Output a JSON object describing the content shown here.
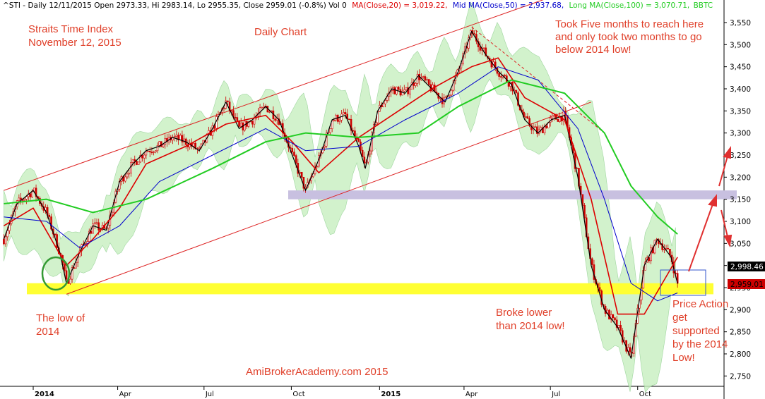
{
  "header": {
    "symbol_text": "^STI - Daily 12/11/2015 Open 2973.33, Hi 2983.14, Lo 2955.35, Close 2959.01 (-0.8%) Vol 0",
    "ma20_text": "MA(Close,20) = 3,019.22,",
    "ma50_text": "Mid MA(Close,50) = 2,937.68,",
    "ma100_text": "Long MA(Close,100) = 3,070.71,",
    "bbtc_text": "BBTC"
  },
  "annotations": {
    "title_line1": "Straits Time Index",
    "title_line2": "November 12, 2015",
    "daily_chart": "Daily Chart",
    "took_line1": "Took Five months to reach here",
    "took_line2": "and only took two months to go",
    "took_line3": "below 2014 low!",
    "low_line1": "The low of",
    "low_line2": "2014",
    "broke_line1": "Broke lower",
    "broke_line2": "than 2014 low!",
    "pa_line1": "Price Action",
    "pa_line2": "get",
    "pa_line3": "supported",
    "pa_line4": "by the 2014",
    "pa_line5": "Low!",
    "watermark": "AmiBrokerAcademy.com 2015"
  },
  "price_labels": {
    "ma_value": "2,998.46",
    "close_value": "2,959.01"
  },
  "colors": {
    "candle": "#cc0000",
    "ma20": "#dd0000",
    "ma50": "#0000cc",
    "ma100": "#22cc22",
    "band_fill": "#c8f0c0",
    "support": "#ffff33",
    "resistance": "#c8c0e0",
    "annotation": "#e0402a",
    "channel": "#dd2222"
  },
  "chart_data": {
    "type": "line",
    "title": "Daily Chart",
    "ylim": [
      2720,
      3580
    ],
    "y_ticks": [
      2750,
      2800,
      2850,
      2900,
      2950,
      3000,
      3050,
      3100,
      3150,
      3200,
      3250,
      3300,
      3350,
      3400,
      3450,
      3500,
      3550
    ],
    "y_tick_labels": [
      "2,750",
      "2,800",
      "2,850",
      "2,900",
      "2,950",
      "3,000",
      "3,050",
      "3,100",
      "3,150",
      "3,200",
      "3,250",
      "3,300",
      "3,350",
      "3,400",
      "3,450",
      "3,500",
      "3,550"
    ],
    "x_tick_labels": [
      {
        "label": "2014",
        "date": "2014-01-02",
        "bold": true
      },
      {
        "label": "Apr",
        "date": "2014-04-01",
        "bold": false
      },
      {
        "label": "Jul",
        "date": "2014-07-01",
        "bold": false
      },
      {
        "label": "Oct",
        "date": "2014-10-01",
        "bold": false
      },
      {
        "label": "2015",
        "date": "2015-01-02",
        "bold": true
      },
      {
        "label": "Apr",
        "date": "2015-04-01",
        "bold": false
      },
      {
        "label": "Jul",
        "date": "2015-07-01",
        "bold": false
      },
      {
        "label": "Oct",
        "date": "2015-10-01",
        "bold": false
      }
    ],
    "series": [
      {
        "name": "^STI Close",
        "color": "#cc0000",
        "points": [
          [
            "2013-12-02",
            3060
          ],
          [
            "2013-12-16",
            3140
          ],
          [
            "2014-01-02",
            3170
          ],
          [
            "2014-01-16",
            3120
          ],
          [
            "2014-01-30",
            3030
          ],
          [
            "2014-02-06",
            2960
          ],
          [
            "2014-02-20",
            3030
          ],
          [
            "2014-03-06",
            3090
          ],
          [
            "2014-03-20",
            3080
          ],
          [
            "2014-04-03",
            3190
          ],
          [
            "2014-04-17",
            3230
          ],
          [
            "2014-05-01",
            3260
          ],
          [
            "2014-05-15",
            3270
          ],
          [
            "2014-05-29",
            3290
          ],
          [
            "2014-06-12",
            3280
          ],
          [
            "2014-06-26",
            3260
          ],
          [
            "2014-07-10",
            3310
          ],
          [
            "2014-07-24",
            3370
          ],
          [
            "2014-08-07",
            3310
          ],
          [
            "2014-08-21",
            3330
          ],
          [
            "2014-09-04",
            3360
          ],
          [
            "2014-09-18",
            3330
          ],
          [
            "2014-10-02",
            3250
          ],
          [
            "2014-10-16",
            3170
          ],
          [
            "2014-10-30",
            3240
          ],
          [
            "2014-11-13",
            3330
          ],
          [
            "2014-11-27",
            3340
          ],
          [
            "2014-12-11",
            3270
          ],
          [
            "2014-12-18",
            3220
          ],
          [
            "2014-12-31",
            3350
          ],
          [
            "2015-01-15",
            3400
          ],
          [
            "2015-01-29",
            3390
          ],
          [
            "2015-02-12",
            3430
          ],
          [
            "2015-02-26",
            3400
          ],
          [
            "2015-03-12",
            3370
          ],
          [
            "2015-03-26",
            3440
          ],
          [
            "2015-04-09",
            3530
          ],
          [
            "2015-04-23",
            3480
          ],
          [
            "2015-05-07",
            3440
          ],
          [
            "2015-05-21",
            3410
          ],
          [
            "2015-06-04",
            3330
          ],
          [
            "2015-06-18",
            3300
          ],
          [
            "2015-07-02",
            3330
          ],
          [
            "2015-07-16",
            3340
          ],
          [
            "2015-07-30",
            3200
          ],
          [
            "2015-08-13",
            3000
          ],
          [
            "2015-08-27",
            2900
          ],
          [
            "2015-09-10",
            2860
          ],
          [
            "2015-09-24",
            2790
          ],
          [
            "2015-10-08",
            3000
          ],
          [
            "2015-10-22",
            3060
          ],
          [
            "2015-11-05",
            3020
          ],
          [
            "2015-11-12",
            2959
          ]
        ]
      },
      {
        "name": "MA(Close,20)",
        "color": "#dd0000",
        "points": [
          [
            "2013-12-02",
            3090
          ],
          [
            "2014-01-02",
            3130
          ],
          [
            "2014-02-06",
            3000
          ],
          [
            "2014-03-06",
            3060
          ],
          [
            "2014-04-03",
            3130
          ],
          [
            "2014-05-01",
            3230
          ],
          [
            "2014-06-12",
            3270
          ],
          [
            "2014-07-24",
            3320
          ],
          [
            "2014-09-04",
            3340
          ],
          [
            "2014-10-02",
            3280
          ],
          [
            "2014-10-30",
            3210
          ],
          [
            "2014-12-11",
            3290
          ],
          [
            "2015-01-15",
            3340
          ],
          [
            "2015-02-26",
            3400
          ],
          [
            "2015-04-09",
            3450
          ],
          [
            "2015-05-07",
            3470
          ],
          [
            "2015-06-04",
            3380
          ],
          [
            "2015-07-16",
            3330
          ],
          [
            "2015-08-13",
            3150
          ],
          [
            "2015-09-10",
            2890
          ],
          [
            "2015-10-08",
            2890
          ],
          [
            "2015-11-12",
            3019
          ]
        ]
      },
      {
        "name": "Mid MA(Close,50)",
        "color": "#0000cc",
        "points": [
          [
            "2013-12-02",
            3110
          ],
          [
            "2014-01-16",
            3100
          ],
          [
            "2014-02-20",
            3040
          ],
          [
            "2014-04-03",
            3090
          ],
          [
            "2014-05-15",
            3190
          ],
          [
            "2014-07-10",
            3250
          ],
          [
            "2014-09-04",
            3310
          ],
          [
            "2014-10-16",
            3260
          ],
          [
            "2014-12-11",
            3270
          ],
          [
            "2015-01-29",
            3330
          ],
          [
            "2015-03-26",
            3390
          ],
          [
            "2015-05-07",
            3450
          ],
          [
            "2015-06-18",
            3420
          ],
          [
            "2015-07-30",
            3310
          ],
          [
            "2015-08-27",
            3150
          ],
          [
            "2015-09-24",
            2960
          ],
          [
            "2015-10-22",
            2920
          ],
          [
            "2015-11-12",
            2938
          ]
        ]
      },
      {
        "name": "Long MA(Close,100)",
        "color": "#22cc22",
        "points": [
          [
            "2013-12-02",
            3140
          ],
          [
            "2014-01-16",
            3150
          ],
          [
            "2014-03-06",
            3120
          ],
          [
            "2014-05-01",
            3150
          ],
          [
            "2014-07-10",
            3220
          ],
          [
            "2014-09-04",
            3280
          ],
          [
            "2014-10-16",
            3300
          ],
          [
            "2014-12-11",
            3290
          ],
          [
            "2015-02-12",
            3300
          ],
          [
            "2015-03-26",
            3360
          ],
          [
            "2015-05-21",
            3420
          ],
          [
            "2015-07-16",
            3390
          ],
          [
            "2015-08-27",
            3300
          ],
          [
            "2015-09-24",
            3180
          ],
          [
            "2015-10-22",
            3110
          ],
          [
            "2015-11-12",
            3071
          ]
        ]
      }
    ],
    "channel_lines": [
      {
        "name": "upper",
        "from": [
          "2013-12-02",
          3170
        ],
        "to": [
          "2015-08-13",
          3640
        ]
      },
      {
        "name": "lower",
        "from": [
          "2014-02-06",
          2935
        ],
        "to": [
          "2015-08-13",
          3370
        ]
      },
      {
        "name": "dashed",
        "from": [
          "2015-04-09",
          3540
        ],
        "to": [
          "2015-08-27",
          3300
        ]
      }
    ],
    "support_zone": [
      2935,
      2960
    ],
    "resistance_zone": [
      3150,
      3170
    ]
  }
}
